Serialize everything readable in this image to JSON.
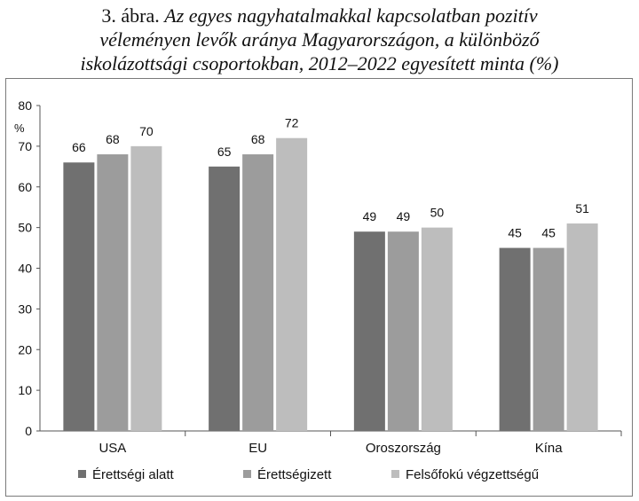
{
  "header": {
    "figure_number": "3. ábra.",
    "title_lines": [
      "Az egyes nagyhatalmakkal kapcsolatban pozitív",
      "véleményen levők aránya Magyarországon, a különböző",
      "iskolázottsági csoportokban, 2012–2022 egyesített minta (%)"
    ]
  },
  "chart_data": {
    "type": "bar",
    "title": "3. ábra. Az egyes nagyhatalmakkal kapcsolatban pozitív véleményen levők aránya Magyarországon, a különböző iskolázottsági csoportokban, 2012–2022 egyesített minta (%)",
    "ylabel": "%",
    "xlabel": "",
    "ylim": [
      0,
      80
    ],
    "yticks": [
      0,
      10,
      20,
      30,
      40,
      50,
      60,
      70,
      80
    ],
    "grid": false,
    "legend_position": "bottom",
    "categories": [
      "USA",
      "EU",
      "Oroszország",
      "Kína"
    ],
    "series": [
      {
        "name": "Érettségi alatt",
        "values": [
          66,
          65,
          49,
          45
        ],
        "labels": [
          "66",
          "65",
          "49",
          "45"
        ],
        "color": "#707070"
      },
      {
        "name": "Érettségizett",
        "values": [
          68,
          68,
          49,
          45
        ],
        "labels": [
          "68",
          "68",
          "49",
          "45"
        ],
        "color": "#9c9c9c"
      },
      {
        "name": "Felsőfokú végzettségű",
        "values": [
          70,
          72,
          50,
          51
        ],
        "labels": [
          "70",
          "72",
          "50",
          "51"
        ],
        "color": "#bdbdbd"
      }
    ]
  }
}
